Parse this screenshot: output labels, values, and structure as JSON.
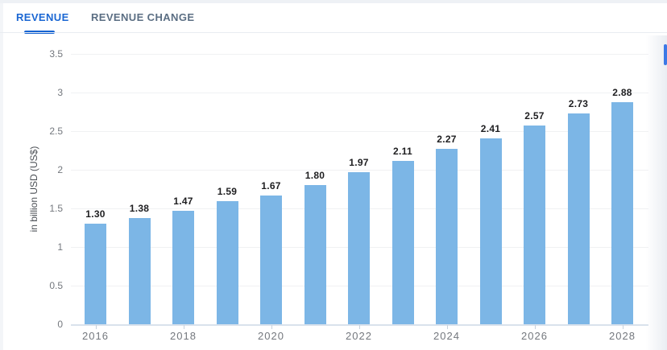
{
  "tabs": [
    {
      "label": "REVENUE",
      "active": true
    },
    {
      "label": "REVENUE CHANGE",
      "active": false
    }
  ],
  "chart_data": {
    "type": "bar",
    "categories": [
      2016,
      2017,
      2018,
      2019,
      2020,
      2021,
      2022,
      2023,
      2024,
      2025,
      2026,
      2027,
      2028
    ],
    "values": [
      1.3,
      1.38,
      1.47,
      1.59,
      1.67,
      1.8,
      1.97,
      2.11,
      2.27,
      2.41,
      2.57,
      2.73,
      2.88
    ],
    "value_labels": [
      "1.30",
      "1.38",
      "1.47",
      "1.59",
      "1.67",
      "1.80",
      "1.97",
      "2.11",
      "2.27",
      "2.41",
      "2.57",
      "2.73",
      "2.88"
    ],
    "xlabel": "",
    "ylabel": "in billion USD (US$)",
    "ylim": [
      0,
      3.5
    ],
    "yticks": [
      0,
      0.5,
      1,
      1.5,
      2,
      2.5,
      3,
      3.5
    ],
    "ytick_labels": [
      "0",
      "0.5",
      "1",
      "1.5",
      "2",
      "2.5",
      "3",
      "3.5"
    ],
    "xtick_labels": [
      "2016",
      "2018",
      "2020",
      "2022",
      "2024",
      "2026",
      "2028"
    ],
    "grid": true,
    "legend": "none",
    "bar_color": "#7cb6e6"
  },
  "colors": {
    "active_tab": "#1b67d3",
    "tab_indicator": "#1563d2",
    "inactive_tab": "#5b6e83",
    "scrollbar": "#3c79e6"
  }
}
